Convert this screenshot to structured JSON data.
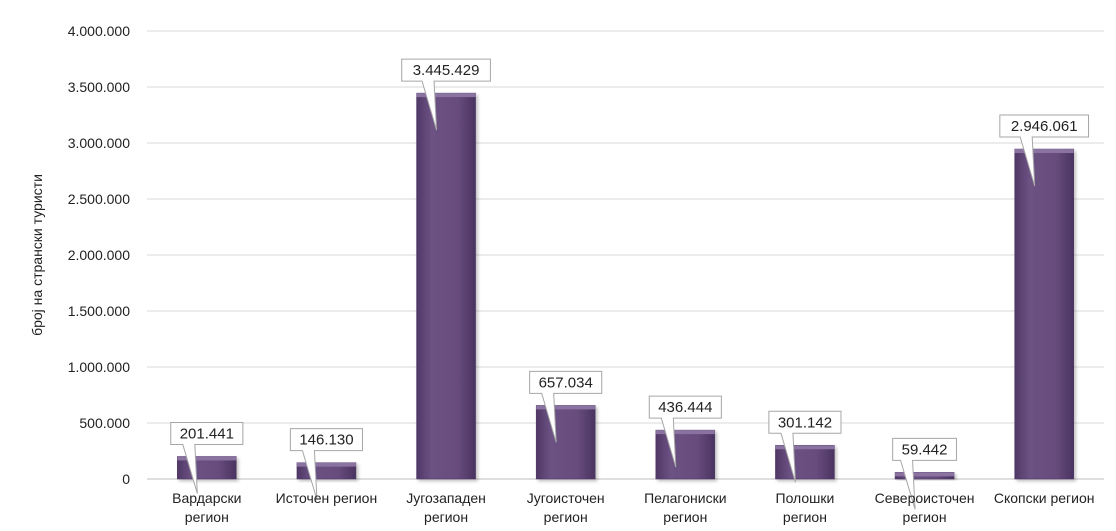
{
  "chart_data": {
    "type": "bar",
    "ylabel": "број на странски туристи",
    "ylim": [
      0,
      4000000
    ],
    "yticks": [
      0,
      500000,
      1000000,
      1500000,
      2000000,
      2500000,
      3000000,
      3500000,
      4000000
    ],
    "ytick_labels": [
      "0",
      "500.000",
      "1.000.000",
      "1.500.000",
      "2.000.000",
      "2.500.000",
      "3.000.000",
      "3.500.000",
      "4.000.000"
    ],
    "grid": true,
    "bar_color": "#674C7D",
    "categories": [
      [
        "Вардарски",
        "регион"
      ],
      [
        "Источен регион"
      ],
      [
        "Југозападен",
        "регион"
      ],
      [
        "Југоисточен",
        "регион"
      ],
      [
        "Пелагониски",
        "регион"
      ],
      [
        "Полошки",
        "регион"
      ],
      [
        "Североисточен",
        "регион"
      ],
      [
        "Скопски регион"
      ]
    ],
    "values": [
      201441,
      146130,
      3445429,
      657034,
      436444,
      301142,
      59442,
      2946061
    ],
    "data_labels": [
      "201.441",
      "146.130",
      "3.445.429",
      "657.034",
      "436.444",
      "301.142",
      "59.442",
      "2.946.061"
    ]
  }
}
